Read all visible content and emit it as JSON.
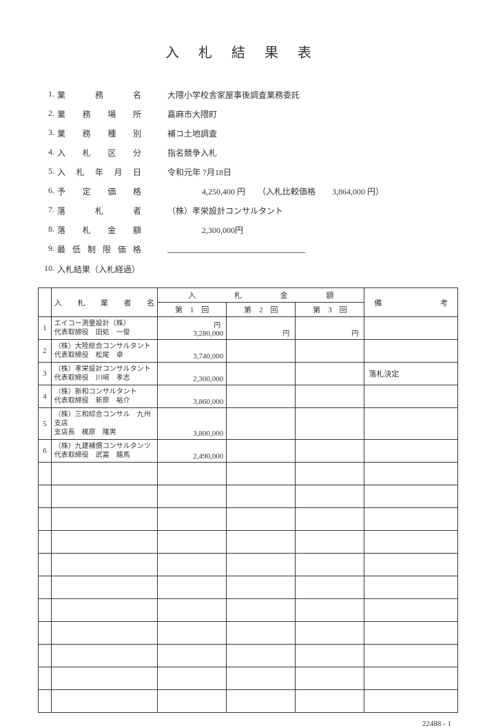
{
  "title": "入札結果表",
  "info": [
    {
      "num": "1.",
      "label": "業務名",
      "value": "大隈小学校舎家屋事後調査業務委託"
    },
    {
      "num": "2.",
      "label": "業務場所",
      "value": "嘉麻市大隈町"
    },
    {
      "num": "3.",
      "label": "業務種別",
      "value": "補コ土地調査"
    },
    {
      "num": "4.",
      "label": "入札区分",
      "value": "指名競争入札"
    },
    {
      "num": "5.",
      "label": "入札年月日",
      "value": "令和元年 7月18日"
    },
    {
      "num": "6.",
      "label": "予定価格",
      "value_price": "4,250,400 円",
      "compare_label": "（入札比較価格",
      "compare_value": "3,864,000 円）"
    },
    {
      "num": "7.",
      "label": "落札者",
      "value": "（株）孝栄設計コンサルタント"
    },
    {
      "num": "8.",
      "label": "落札金額",
      "value_price": "2,300,000円"
    },
    {
      "num": "9.",
      "label": "最低制限価格",
      "underline": true
    },
    {
      "num": "10.",
      "label_plain": "入札結果（入札経過）"
    }
  ],
  "table": {
    "header_bidder": "入札業者名",
    "header_amount": "入札金額",
    "header_note": "備考",
    "round1": "第　1　回",
    "round2": "第　2　回",
    "round3": "第　3　回",
    "yen": "円",
    "rows": [
      {
        "n": "1",
        "bidder_l1": "エイコー測量設計（株）",
        "bidder_l2": "代表取締役　田処　一俊",
        "b1": "3,280,000",
        "note": ""
      },
      {
        "n": "2",
        "bidder_l1": "（株）大陸総合コンサルタント",
        "bidder_l2": "代表取締役　松尾　卓",
        "b1": "3,740,000",
        "note": ""
      },
      {
        "n": "3",
        "bidder_l1": "（株）孝栄設計コンサルタント",
        "bidder_l2": "代表取締役　川﨑　孝志",
        "b1": "2,300,000",
        "note": "落札決定"
      },
      {
        "n": "4",
        "bidder_l1": "（株）新和コンサルタント",
        "bidder_l2": "代表取締役　新原　裕介",
        "b1": "3,860,000",
        "note": ""
      },
      {
        "n": "5",
        "bidder_l1": "（株）三和綜合コンサル　九州支店",
        "bidder_l2": "支店長　梶原　隆男",
        "b1": "3,800,000",
        "note": ""
      },
      {
        "n": "6",
        "bidder_l1": "（株）九建補償コンサルタンツ",
        "bidder_l2": "代表取締役　武富　龍馬",
        "b1": "2,490,000",
        "note": ""
      }
    ],
    "empty_rows": 11
  },
  "footer": "22488 - 1"
}
